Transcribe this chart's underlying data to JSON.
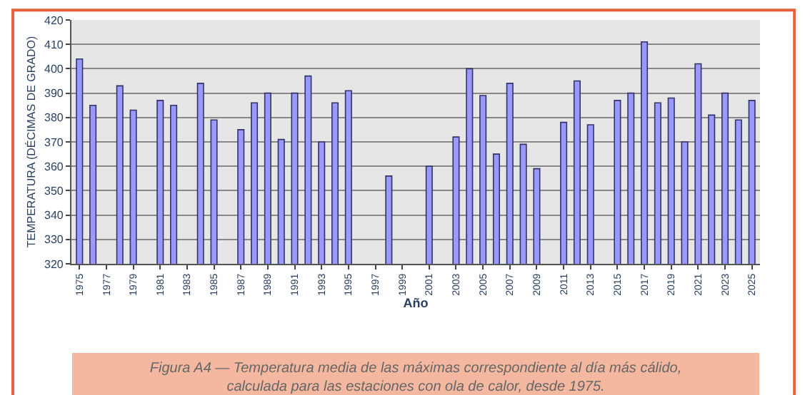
{
  "chart_data": {
    "type": "bar",
    "xlabel": "Año",
    "ylabel": "TEMPERATURA (DÉCIMAS DE GRADO)",
    "categories": [
      "1975",
      null,
      "1977",
      null,
      "1979",
      null,
      "1981",
      null,
      "1983",
      null,
      "1985",
      null,
      "1987",
      null,
      "1989",
      null,
      "1991",
      null,
      "1993",
      null,
      "1995",
      null,
      "1997",
      null,
      "1999",
      null,
      "2001",
      null,
      "2003",
      null,
      "2005",
      null,
      "2007",
      null,
      "2009",
      null,
      "2011",
      null,
      "2013",
      null,
      "2015",
      null,
      "2017",
      null,
      "2019",
      null,
      "2021",
      null,
      "2023",
      null,
      "2025"
    ],
    "values": [
      404,
      385,
      null,
      393,
      383,
      null,
      387,
      385,
      null,
      394,
      379,
      null,
      375,
      386,
      390,
      371,
      390,
      397,
      370,
      386,
      391,
      null,
      null,
      356,
      null,
      null,
      360,
      null,
      372,
      400,
      389,
      365,
      394,
      369,
      359,
      null,
      378,
      395,
      377,
      null,
      387,
      390,
      411,
      386,
      388,
      370,
      402,
      381,
      390,
      379,
      387
    ],
    "color": "#9999ff",
    "ylim": [
      320,
      420
    ],
    "yticks": [
      320,
      330,
      340,
      350,
      360,
      370,
      380,
      390,
      400,
      410,
      420
    ],
    "grid": "y",
    "annotations": [
      "Figura A4 — Temperatura media de las máximas correspondiente al día más cálido,\ncalculada para las estaciones con ola de calor, desde 1975."
    ]
  }
}
